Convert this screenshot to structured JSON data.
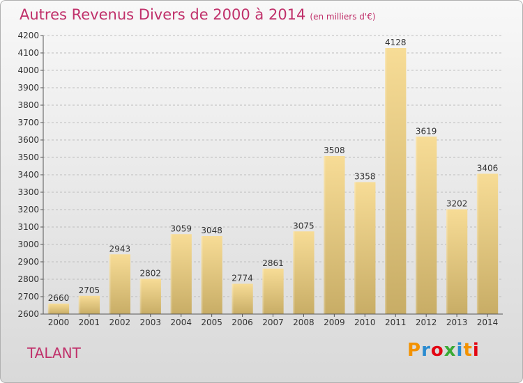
{
  "header": {
    "title": "Autres Revenus Divers de 2000 à 2014",
    "subtitle": "(en milliers d'€)"
  },
  "footer": {
    "commune": "TALANT",
    "logo": "Proxiti"
  },
  "colors": {
    "title": "#c0306a",
    "bar_top": "#f7dc96",
    "bar_bottom": "#c8ad66"
  },
  "chart_data": {
    "type": "bar",
    "categories": [
      "2000",
      "2001",
      "2002",
      "2003",
      "2004",
      "2005",
      "2006",
      "2007",
      "2008",
      "2009",
      "2010",
      "2011",
      "2012",
      "2013",
      "2014"
    ],
    "values": [
      2660,
      2705,
      2943,
      2802,
      3059,
      3048,
      2774,
      2861,
      3075,
      3508,
      3358,
      4128,
      3619,
      3202,
      3406
    ],
    "ylim": [
      2600,
      4200
    ],
    "yticks": [
      2600,
      2700,
      2800,
      2900,
      3000,
      3100,
      3200,
      3300,
      3400,
      3500,
      3600,
      3700,
      3800,
      3900,
      4000,
      4100,
      4200
    ],
    "title": "Autres Revenus Divers de 2000 à 2014",
    "xlabel": "",
    "ylabel": "",
    "grid": true
  }
}
